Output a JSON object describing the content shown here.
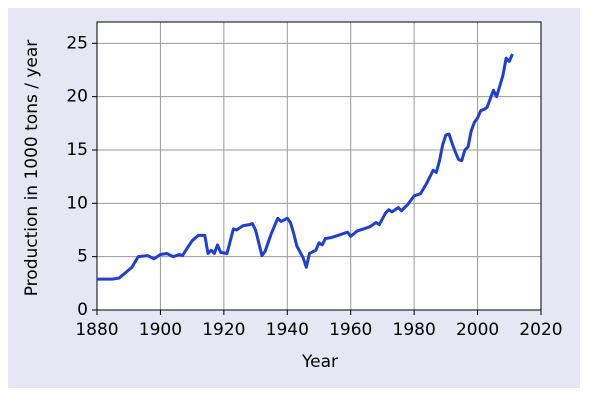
{
  "chart_data": {
    "type": "line",
    "x_label": "Year",
    "y_label": "Production in 1000 tons / year",
    "x": [
      1880,
      1885,
      1887,
      1889,
      1891,
      1893,
      1896,
      1898,
      1900,
      1902,
      1904,
      1906,
      1907,
      1908,
      1910,
      1912,
      1914,
      1915,
      1916,
      1917,
      1918,
      1919,
      1921,
      1923,
      1924,
      1926,
      1928,
      1929,
      1930,
      1932,
      1933,
      1935,
      1937,
      1938,
      1940,
      1941,
      1942,
      1943,
      1945,
      1946,
      1947,
      1949,
      1950,
      1951,
      1952,
      1954,
      1955,
      1957,
      1959,
      1960,
      1962,
      1964,
      1966,
      1968,
      1969,
      1971,
      1972,
      1973,
      1975,
      1976,
      1978,
      1980,
      1982,
      1984,
      1986,
      1987,
      1988,
      1989,
      1990,
      1991,
      1992,
      1993,
      1994,
      1995,
      1996,
      1997,
      1998,
      1999,
      2000,
      2001,
      2002,
      2003,
      2004,
      2005,
      2006,
      2007,
      2008,
      2009,
      2010,
      2011
    ],
    "series": [
      {
        "color": "#1f3fd1",
        "values": [
          2.9,
          2.9,
          3.0,
          3.5,
          4.0,
          5.0,
          5.1,
          4.8,
          5.2,
          5.3,
          5.0,
          5.2,
          5.1,
          5.6,
          6.5,
          7.0,
          7.0,
          5.3,
          5.6,
          5.3,
          6.1,
          5.4,
          5.3,
          7.6,
          7.5,
          7.9,
          8.0,
          8.1,
          7.5,
          5.1,
          5.5,
          7.2,
          8.6,
          8.3,
          8.6,
          8.2,
          7.2,
          6.0,
          4.9,
          4.0,
          5.3,
          5.6,
          6.3,
          6.1,
          6.7,
          6.8,
          6.9,
          7.1,
          7.3,
          6.9,
          7.4,
          7.6,
          7.8,
          8.2,
          8.0,
          9.1,
          9.4,
          9.2,
          9.6,
          9.3,
          9.9,
          10.7,
          10.9,
          11.9,
          13.1,
          12.9,
          14.0,
          15.5,
          16.4,
          16.5,
          15.6,
          14.8,
          14.1,
          14.0,
          15.0,
          15.3,
          16.8,
          17.6,
          18.0,
          18.7,
          18.8,
          19.0,
          19.8,
          20.6,
          20.0,
          21.0,
          22.0,
          23.6,
          23.3,
          24.0
        ]
      }
    ],
    "xlim": [
      1880,
      2020
    ],
    "xticks": [
      1880,
      1900,
      1920,
      1940,
      1960,
      1980,
      2000,
      2020
    ],
    "ylim": [
      0,
      27
    ],
    "yticks": [
      0,
      5,
      10,
      15,
      20,
      25
    ],
    "grid": true
  }
}
